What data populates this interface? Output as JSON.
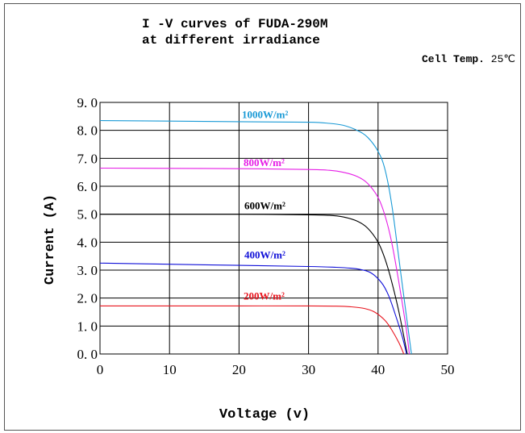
{
  "title_line1": "I -V curves of FUDA-290M",
  "title_line2": "at different irradiance",
  "temp_label": "Cell Temp.",
  "temp_value": "25℃",
  "chart_data": {
    "type": "line",
    "title": "I -V curves of FUDA-290M at different irradiance",
    "xlabel": "Voltage (v)",
    "ylabel": "Current (A)",
    "xlim": [
      0,
      50
    ],
    "ylim": [
      0,
      9
    ],
    "grid": true,
    "x_ticks": [
      "0",
      "10",
      "20",
      "30",
      "40",
      "50"
    ],
    "y_ticks": [
      "0. 0",
      "1. 0",
      "2. 0",
      "3. 0",
      "4. 0",
      "5. 0",
      "6. 0",
      "7. 0",
      "8. 0",
      "9. 0"
    ],
    "series": [
      {
        "name": "1000W/m²",
        "color": "#1a9ad6",
        "x": [
          0,
          10,
          20,
          30,
          33,
          35,
          37,
          38.5,
          40,
          41,
          42,
          43,
          44,
          44.8
        ],
        "y": [
          8.35,
          8.33,
          8.31,
          8.29,
          8.25,
          8.18,
          8.0,
          7.75,
          7.25,
          6.6,
          5.3,
          3.4,
          1.5,
          0
        ]
      },
      {
        "name": "800W/m²",
        "color": "#e61ee6",
        "x": [
          0,
          10,
          20,
          30,
          33,
          35,
          37,
          38.5,
          40,
          41,
          42,
          43,
          44,
          44.5
        ],
        "y": [
          6.65,
          6.64,
          6.63,
          6.6,
          6.57,
          6.5,
          6.35,
          6.1,
          5.6,
          4.95,
          3.95,
          2.55,
          1.0,
          0
        ]
      },
      {
        "name": "600W/m²",
        "color": "#000000",
        "x": [
          0,
          10,
          20,
          30,
          33,
          35,
          37,
          38.5,
          40,
          41,
          42,
          43,
          44.2
        ],
        "y": [
          5.0,
          5.0,
          5.0,
          4.98,
          4.96,
          4.9,
          4.75,
          4.5,
          4.0,
          3.4,
          2.55,
          1.5,
          0
        ]
      },
      {
        "name": "400W/m²",
        "color": "#1010d8",
        "x": [
          0,
          10,
          20,
          30,
          34,
          36,
          37.5,
          39,
          40.5,
          41.5,
          42.5,
          43.5,
          44.1
        ],
        "y": [
          3.25,
          3.21,
          3.17,
          3.13,
          3.1,
          3.07,
          3.02,
          2.9,
          2.55,
          2.1,
          1.4,
          0.6,
          0
        ]
      },
      {
        "name": "200W/m²",
        "color": "#e8141e",
        "x": [
          0,
          10,
          20,
          30,
          34,
          36,
          38,
          39.5,
          41,
          42,
          43,
          43.7
        ],
        "y": [
          1.72,
          1.72,
          1.72,
          1.72,
          1.71,
          1.69,
          1.63,
          1.5,
          1.2,
          0.85,
          0.4,
          0
        ]
      }
    ]
  }
}
